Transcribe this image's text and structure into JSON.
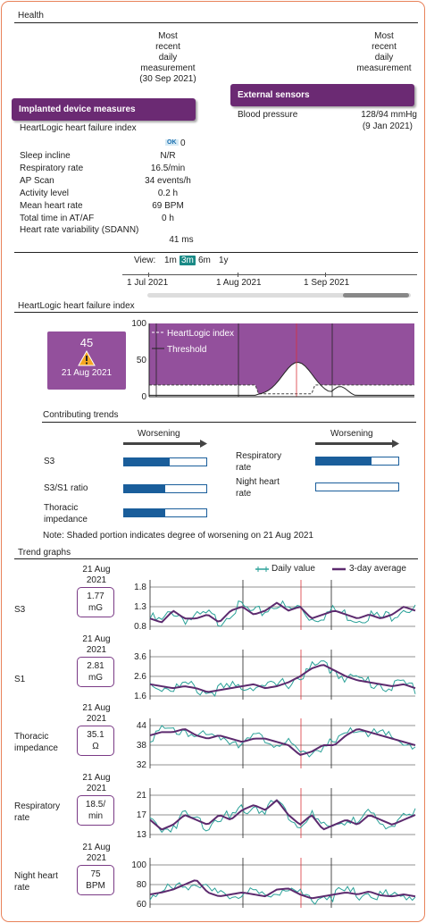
{
  "health": {
    "title": "Health",
    "col_internal_header": "Most\nrecent\ndaily\nmeasurement\n(30 Sep 2021)",
    "col_external_header": "Most\nrecent\ndaily\nmeasurement",
    "implanted_banner": "Implanted device measures",
    "external_banner": "External sensors",
    "heartlogic_label": "HeartLogic heart failure index",
    "ok_badge": "OK",
    "heartlogic_value": "0",
    "measures": [
      {
        "label": "Sleep incline",
        "value": "N/R"
      },
      {
        "label": "Respiratory rate",
        "value": "16.5/min"
      },
      {
        "label": "AP Scan",
        "value": "34 events/h"
      },
      {
        "label": "Activity level",
        "value": "0.2 h"
      },
      {
        "label": "Mean heart rate",
        "value": "69 BPM"
      },
      {
        "label": "Total time in AT/AF",
        "value": "0 h"
      }
    ],
    "hrv_label": "Heart rate variability (SDANN)",
    "hrv_value": "41 ms",
    "bp_label": "Blood pressure",
    "bp_value": "128/94 mmHg",
    "bp_date": "(9 Jan 2021)"
  },
  "view": {
    "label": "View:",
    "options": [
      "1m",
      "3m",
      "6m",
      "1y"
    ],
    "active": "3m",
    "timeline_labels": [
      "1 Jul 2021",
      "1 Aug 2021",
      "1 Sep 2021"
    ]
  },
  "heartlogic": {
    "title": "HeartLogic heart failure index",
    "card_value": "45",
    "card_date": "21 Aug 2021",
    "legend_index": "HeartLogic index",
    "legend_threshold": "Threshold",
    "y_ticks": [
      "100",
      "50",
      "0"
    ]
  },
  "contributing": {
    "title": "Contributing trends",
    "worsening": "Worsening",
    "left": [
      {
        "label": "S3",
        "fill": 0.55
      },
      {
        "label": "S3/S1 ratio",
        "fill": 0.5
      },
      {
        "label": "Thoracic\nimpedance",
        "fill": 0.5
      }
    ],
    "right": [
      {
        "label": "Respiratory\nrate",
        "fill": 0.67
      },
      {
        "label": "Night heart\nrate",
        "fill": 0.0
      }
    ],
    "note": "Note: Shaded portion indicates degree of worsening on 21 Aug 2021"
  },
  "trend_graphs": {
    "title": "Trend graphs",
    "legend_daily": "Daily value",
    "legend_avg": "3-day average",
    "colors": {
      "daily": "#2aa198",
      "avg": "#5c2a6e",
      "marker": "#d9343b"
    },
    "items": [
      {
        "label": "S3",
        "date": "21 Aug\n2021",
        "value": "1.77\nmG",
        "y_ticks": [
          "1.8",
          "1.3",
          "0.8"
        ]
      },
      {
        "label": "S1",
        "date": "21 Aug\n2021",
        "value": "2.81\nmG",
        "y_ticks": [
          "3.6",
          "2.6",
          "1.6"
        ]
      },
      {
        "label": "Thoracic\nimpedance",
        "date": "21 Aug\n2021",
        "value": "35.1\nΩ",
        "y_ticks": [
          "44",
          "38",
          "32"
        ]
      },
      {
        "label": "Respiratory\nrate",
        "date": "21 Aug\n2021",
        "value": "18.5/\nmin",
        "y_ticks": [
          "21",
          "17",
          "13"
        ]
      },
      {
        "label": "Night heart\nrate",
        "date": "21 Aug\n2021",
        "value": "75\nBPM",
        "y_ticks": [
          "100",
          "80",
          "60"
        ]
      }
    ]
  }
}
